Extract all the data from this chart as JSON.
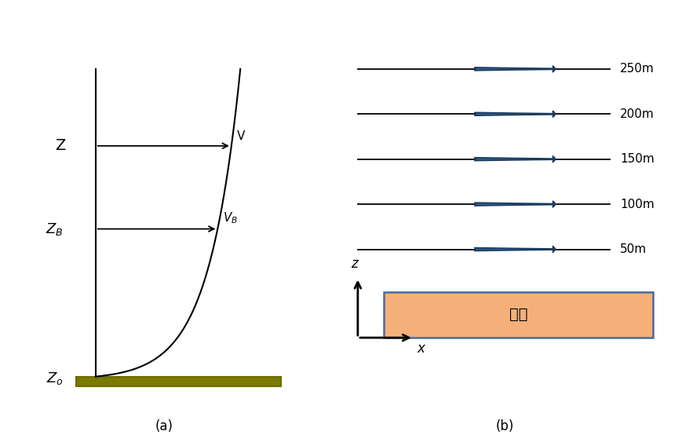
{
  "bg_color": "#ffffff",
  "panel_a": {
    "ground_color": "#7a7a00",
    "ground_color2": "#6b6b00",
    "curve_color": "#000000",
    "line_color": "#000000",
    "caption": "(a)"
  },
  "panel_b": {
    "arrow_color_dark": "#1a3a5c",
    "arrow_color_mid": "#2e5a8e",
    "arrow_color_light": "#4a7ab5",
    "line_color": "#000000",
    "ground_fill": "#f5b07a",
    "ground_edge": "#4a6a9a",
    "ground_text": "지면",
    "heights": [
      50,
      100,
      150,
      200,
      250
    ],
    "caption": "(b)",
    "axis_color": "#000000"
  }
}
